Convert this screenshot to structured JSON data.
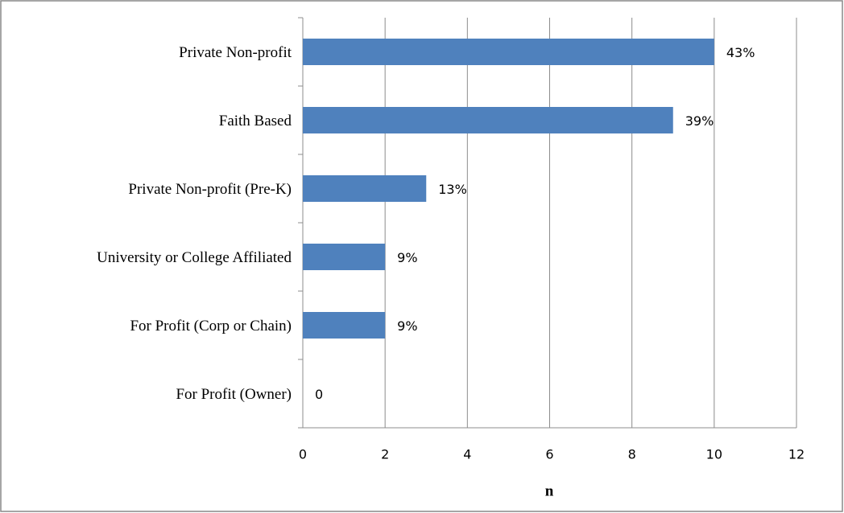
{
  "chart_data": {
    "type": "barh",
    "categories": [
      "Private Non-profit",
      "Faith Based",
      "Private Non-profit (Pre-K)",
      "University or College Affiliated",
      "For Profit (Corp or Chain)",
      "For Profit (Owner)"
    ],
    "values": [
      10,
      9,
      3,
      2,
      2,
      0
    ],
    "annotations": [
      "43%",
      "39%",
      "13%",
      "9%",
      "9%",
      "0"
    ],
    "color": "#4f81bd",
    "xlabel": "n",
    "xlim": [
      0,
      12
    ],
    "xticks": [
      0,
      2,
      4,
      6,
      8,
      10,
      12
    ],
    "grid": true
  }
}
